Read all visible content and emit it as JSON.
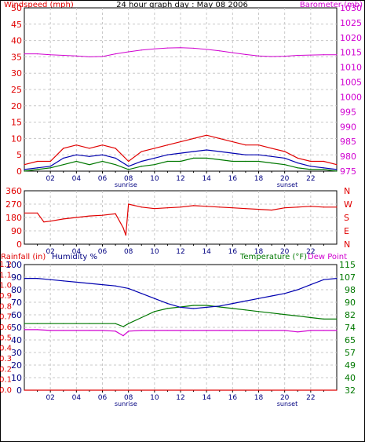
{
  "header": {
    "title": "24 hour graph day : May 08 2006",
    "left_label": "Windspeed (mph)",
    "right_label": "Barometer (mb)"
  },
  "colors": {
    "red": "#e00000",
    "magenta": "#d000d0",
    "blue": "#0000b0",
    "green": "#007800",
    "grid": "#c8c8c8",
    "border": "#000000"
  },
  "chart_data": [
    {
      "type": "line",
      "title": "24 hour graph day : May 08 2006",
      "x_ticks": [
        "02",
        "04",
        "06",
        "08",
        "10",
        "12",
        "14",
        "16",
        "18",
        "20",
        "22"
      ],
      "x_annotations": {
        "sunrise": "sunrise",
        "sunset": "sunset"
      },
      "left_axis": {
        "label": "Windspeed (mph)",
        "ticks": [
          "0",
          "5",
          "10",
          "15",
          "20",
          "25",
          "30",
          "35",
          "40",
          "45",
          "50"
        ],
        "range": [
          0,
          50
        ]
      },
      "right_axis": {
        "label": "Barometer (mb)",
        "ticks": [
          "975",
          "980",
          "985",
          "990",
          "995",
          "1000",
          "1005",
          "1010",
          "1015",
          "1020",
          "1025",
          "1030"
        ],
        "range": [
          975,
          1030
        ]
      },
      "series": [
        {
          "name": "Barometer (mb)",
          "color": "#d000d0",
          "x": [
            0,
            1,
            2,
            3,
            4,
            5,
            6,
            7,
            8,
            9,
            10,
            11,
            12,
            13,
            14,
            15,
            16,
            17,
            18,
            19,
            20,
            21,
            22,
            23,
            24
          ],
          "values": [
            1014.5,
            1014.5,
            1014.2,
            1014.0,
            1013.8,
            1013.5,
            1013.6,
            1014.5,
            1015.2,
            1015.8,
            1016.2,
            1016.5,
            1016.6,
            1016.4,
            1016.0,
            1015.5,
            1014.9,
            1014.3,
            1013.8,
            1013.6,
            1013.7,
            1014.0,
            1014.1,
            1014.2,
            1014.2
          ]
        },
        {
          "name": "Wind gust (mph)",
          "color": "#e00000",
          "x": [
            0,
            1,
            2,
            3,
            4,
            5,
            6,
            7,
            8,
            9,
            10,
            11,
            12,
            13,
            14,
            15,
            16,
            17,
            18,
            19,
            20,
            21,
            22,
            23,
            24
          ],
          "values": [
            2,
            3,
            3,
            7,
            8,
            7,
            8,
            7,
            3,
            6,
            7,
            8,
            9,
            10,
            11,
            10,
            9,
            8,
            8,
            7,
            6,
            4,
            3,
            3,
            2
          ]
        },
        {
          "name": "Wind average (mph)",
          "color": "#0000b0",
          "x": [
            0,
            1,
            2,
            3,
            4,
            5,
            6,
            7,
            8,
            9,
            10,
            11,
            12,
            13,
            14,
            15,
            16,
            17,
            18,
            19,
            20,
            21,
            22,
            23,
            24
          ],
          "values": [
            0.5,
            1,
            1.5,
            4,
            5,
            4.5,
            5,
            4,
            1.5,
            3,
            4,
            5,
            5.5,
            6,
            6.5,
            6,
            5.5,
            5,
            5,
            4.5,
            4,
            2.5,
            1.5,
            1,
            0.5
          ]
        },
        {
          "name": "Wind speed (mph)",
          "color": "#007800",
          "x": [
            0,
            1,
            2,
            3,
            4,
            5,
            6,
            7,
            8,
            9,
            10,
            11,
            12,
            13,
            14,
            15,
            16,
            17,
            18,
            19,
            20,
            21,
            22,
            23,
            24
          ],
          "values": [
            0,
            0.5,
            1,
            2,
            3,
            2,
            3,
            2,
            0.5,
            1.5,
            2,
            3,
            3,
            4,
            4,
            3.5,
            3,
            3,
            3,
            2.5,
            2,
            1,
            0.5,
            0.5,
            0
          ]
        }
      ]
    },
    {
      "type": "line",
      "x_ticks": [
        "02",
        "04",
        "06",
        "08",
        "10",
        "12",
        "14",
        "16",
        "18",
        "20",
        "22"
      ],
      "left_axis": {
        "ticks": [
          "0",
          "90",
          "180",
          "270",
          "360"
        ],
        "range": [
          0,
          360
        ]
      },
      "right_axis": {
        "ticks": [
          "N",
          "W",
          "S",
          "E",
          "N"
        ]
      },
      "series": [
        {
          "name": "Wind direction (deg)",
          "color": "#e00000",
          "x": [
            0,
            1,
            1.5,
            2,
            3,
            4,
            5,
            6,
            7,
            7.6,
            7.8,
            8,
            9,
            10,
            11,
            12,
            13,
            14,
            15,
            16,
            17,
            18,
            19,
            20,
            21,
            22,
            23,
            24
          ],
          "values": [
            210,
            210,
            150,
            155,
            170,
            180,
            190,
            195,
            205,
            110,
            60,
            270,
            250,
            240,
            245,
            250,
            260,
            255,
            250,
            245,
            240,
            235,
            230,
            245,
            250,
            255,
            250,
            250
          ]
        }
      ]
    },
    {
      "type": "line",
      "x_ticks": [
        "02",
        "04",
        "06",
        "08",
        "10",
        "12",
        "14",
        "16",
        "18",
        "20",
        "22"
      ],
      "x_annotations": {
        "sunrise": "sunrise",
        "sunset": "sunset"
      },
      "left_axis": {
        "label": "Rainfall (in)",
        "ticks": [
          "0.0",
          "0.1",
          "0.2",
          "0.3",
          "0.4",
          "0.5",
          "0.6",
          "0.7",
          "0.8",
          "0.9",
          "1.0",
          "1.1",
          "1.2"
        ],
        "range": [
          0,
          1.2
        ]
      },
      "left_axis_2": {
        "label": "Humidity %",
        "ticks": [
          "0",
          "10",
          "20",
          "30",
          "40",
          "50",
          "60",
          "70",
          "80",
          "90",
          "100"
        ],
        "range": [
          0,
          100
        ]
      },
      "right_axis": {
        "label": "Temperature (°F)",
        "label2": "Dew Point",
        "ticks": [
          "32",
          "40",
          "49",
          "57",
          "65",
          "74",
          "82",
          "90",
          "98",
          "107",
          "115"
        ],
        "range": [
          32,
          115
        ]
      },
      "series": [
        {
          "name": "Humidity %",
          "color": "#0000b0",
          "x": [
            0,
            1,
            2,
            3,
            4,
            5,
            6,
            7,
            8,
            9,
            10,
            11,
            12,
            13,
            14,
            15,
            16,
            17,
            18,
            19,
            20,
            21,
            22,
            23,
            24
          ],
          "values": [
            89,
            89,
            88,
            87,
            86,
            85,
            84,
            83,
            81,
            77,
            73,
            69,
            66,
            65,
            66,
            67,
            69,
            71,
            73,
            75,
            77,
            80,
            84,
            88,
            89
          ]
        },
        {
          "name": "Temperature (°F)",
          "color": "#007800",
          "x": [
            0,
            1,
            2,
            3,
            4,
            5,
            6,
            7,
            7.6,
            8,
            9,
            10,
            11,
            12,
            13,
            14,
            15,
            16,
            17,
            18,
            19,
            20,
            21,
            22,
            23,
            24
          ],
          "values": [
            76,
            76,
            76,
            76,
            76,
            76,
            76,
            76,
            74,
            76,
            80,
            84,
            86,
            87,
            88,
            88,
            87,
            86,
            85,
            84,
            83,
            82,
            81,
            80,
            79,
            79
          ]
        },
        {
          "name": "Dew Point (°F)",
          "color": "#d000d0",
          "x": [
            0,
            1,
            2,
            3,
            4,
            5,
            6,
            7,
            7.6,
            8,
            9,
            10,
            11,
            12,
            13,
            14,
            15,
            16,
            17,
            18,
            19,
            20,
            21,
            22,
            23,
            24
          ],
          "values": [
            72,
            72,
            71.5,
            71.5,
            71.5,
            71.5,
            71.5,
            71,
            68,
            71,
            71.5,
            71.5,
            71.5,
            71.5,
            71.5,
            71.5,
            71.5,
            71.5,
            71.5,
            71.5,
            71.5,
            71.5,
            70.5,
            71.5,
            71.5,
            71.5
          ]
        },
        {
          "name": "Rainfall (in)",
          "color": "#e00000",
          "x": [
            0,
            24
          ],
          "values": [
            0,
            0
          ]
        }
      ]
    }
  ]
}
